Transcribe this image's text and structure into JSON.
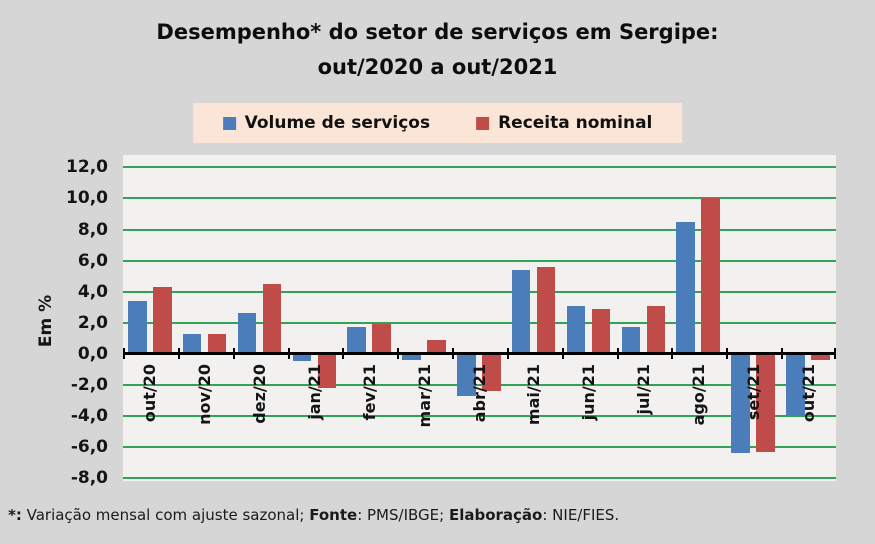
{
  "title": {
    "line1": "Desempenho* do setor de serviços em Sergipe:",
    "line2": "out/2020 a out/2021"
  },
  "legend": {
    "items": [
      {
        "label": "Volume de serviços",
        "color": "#4C7DBB"
      },
      {
        "label": "Receita nominal",
        "color": "#BF4C49"
      }
    ],
    "background": "#FBE5D6"
  },
  "chart_data": {
    "type": "bar",
    "title": "Desempenho* do setor de serviços em Sergipe: out/2020 a out/2021",
    "ylabel": "Em %",
    "xlabel": "",
    "categories": [
      "out/20",
      "nov/20",
      "dez/20",
      "jan/21",
      "fev/21",
      "mar/21",
      "abr/21",
      "mai/21",
      "jun/21",
      "jul/21",
      "ago/21",
      "set/21",
      "out/21"
    ],
    "series": [
      {
        "name": "Volume de serviços",
        "color": "#4C7DBB",
        "values": [
          3.4,
          1.3,
          2.6,
          -0.5,
          1.7,
          -0.4,
          -2.7,
          5.4,
          3.1,
          1.7,
          8.5,
          -6.4,
          -4.0
        ]
      },
      {
        "name": "Receita nominal",
        "color": "#BF4C49",
        "values": [
          4.3,
          1.3,
          4.5,
          -2.2,
          1.9,
          0.9,
          -2.4,
          5.6,
          2.9,
          3.1,
          10.0,
          -6.3,
          -0.4
        ]
      }
    ],
    "ylim": [
      -8.2,
      12.8
    ],
    "yticks": [
      {
        "value": 12,
        "label": "12,0"
      },
      {
        "value": 10,
        "label": "10,0"
      },
      {
        "value": 8,
        "label": "8,0"
      },
      {
        "value": 6,
        "label": "6,0"
      },
      {
        "value": 4,
        "label": "4,0"
      },
      {
        "value": 2,
        "label": "2,0"
      },
      {
        "value": 0,
        "label": "0,0"
      },
      {
        "value": -2,
        "label": "-2,0"
      },
      {
        "value": -4,
        "label": "-4,0"
      },
      {
        "value": -6,
        "label": "-6,0"
      },
      {
        "value": -8,
        "label": "-8,0"
      }
    ],
    "grid": true,
    "gridline_color": "#2FA457",
    "plot_background": "#F2F1EF",
    "legend_position": "top"
  },
  "footer": {
    "segments": [
      {
        "text": "*:",
        "bold": true
      },
      {
        "text": " Variação mensal com ajuste sazonal; ",
        "bold": false
      },
      {
        "text": "Fonte",
        "bold": true
      },
      {
        "text": ": PMS/IBGE; ",
        "bold": false
      },
      {
        "text": "Elaboração",
        "bold": true
      },
      {
        "text": ": NIE/FIES.",
        "bold": false
      }
    ]
  }
}
